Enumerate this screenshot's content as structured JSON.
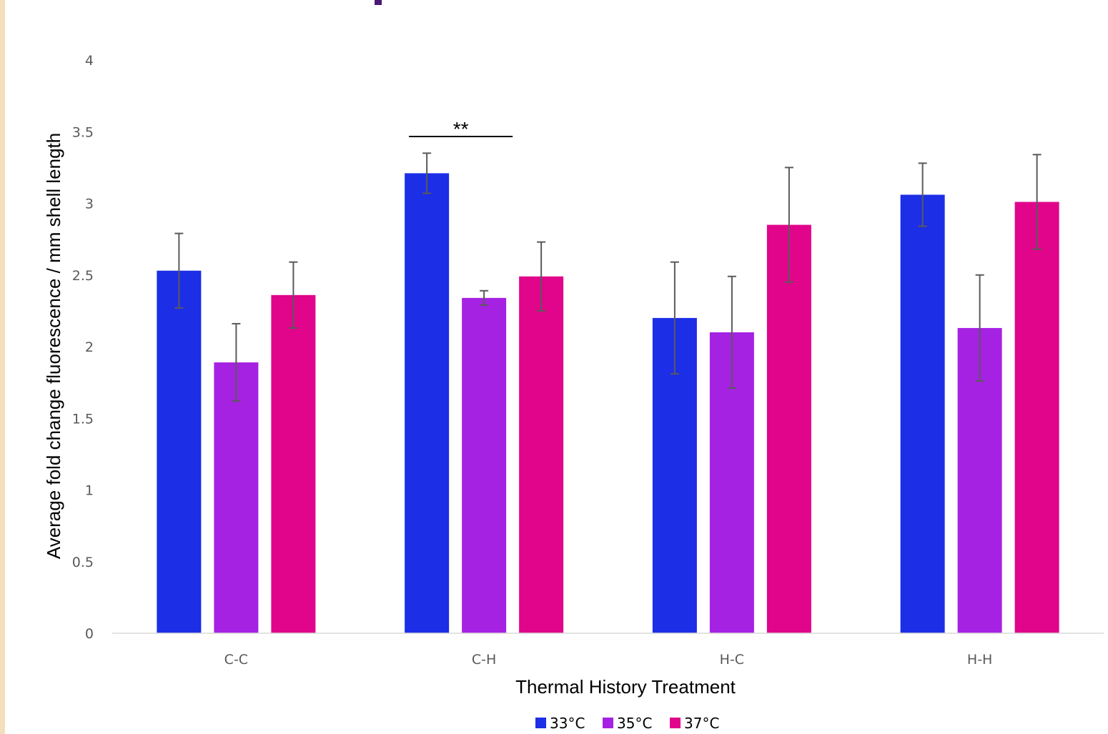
{
  "chart_data": {
    "type": "bar",
    "title": "",
    "xlabel": "Thermal History Treatment",
    "ylabel": "Average fold change fluorescence / mm shell length",
    "categories": [
      "C-C",
      "C-H",
      "H-C",
      "H-H"
    ],
    "ylim": [
      0,
      4
    ],
    "yticks": [
      "0",
      "0.5",
      "1",
      "1.5",
      "2",
      "2.5",
      "3",
      "3.5",
      "4"
    ],
    "grid": false,
    "legend_position": "bottom",
    "series": [
      {
        "name": "33°C",
        "color": "#1c2ee6",
        "values": [
          2.53,
          3.21,
          2.2,
          3.06
        ],
        "errors": [
          0.26,
          0.14,
          0.39,
          0.22
        ]
      },
      {
        "name": "35°C",
        "color": "#a522e3",
        "values": [
          1.89,
          2.34,
          2.1,
          2.13
        ],
        "errors": [
          0.27,
          0.05,
          0.39,
          0.37
        ]
      },
      {
        "name": "37°C",
        "color": "#e0058b",
        "values": [
          2.36,
          2.49,
          2.85,
          3.01
        ],
        "errors": [
          0.23,
          0.24,
          0.4,
          0.33
        ]
      }
    ],
    "annotations": [
      {
        "text": "**",
        "category": "C-H"
      }
    ]
  }
}
